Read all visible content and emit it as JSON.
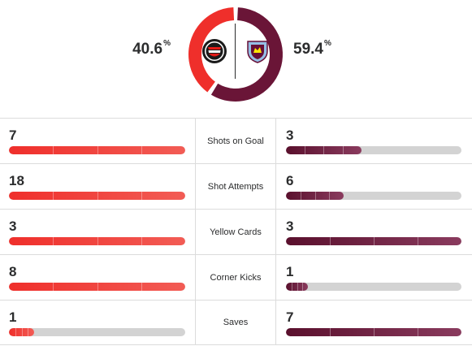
{
  "possession": {
    "home_value": "40.6",
    "away_value": "59.4",
    "percent_sign": "%",
    "home_fraction": 0.406,
    "away_fraction": 0.594,
    "home_color": "#ef2f2b",
    "away_color": "#6a1537"
  },
  "teams": {
    "home_crest_icon": "feyenoord-crest-icon",
    "away_crest_icon": "aston-villa-crest-icon"
  },
  "stats": [
    {
      "label": "Shots on Goal",
      "home": "7",
      "away": "3",
      "home_fill": 1.0,
      "away_fill": 0.43
    },
    {
      "label": "Shot Attempts",
      "home": "18",
      "away": "6",
      "home_fill": 1.0,
      "away_fill": 0.33
    },
    {
      "label": "Yellow Cards",
      "home": "3",
      "away": "3",
      "home_fill": 1.0,
      "away_fill": 1.0
    },
    {
      "label": "Corner Kicks",
      "home": "8",
      "away": "1",
      "home_fill": 1.0,
      "away_fill": 0.125
    },
    {
      "label": "Saves",
      "home": "1",
      "away": "7",
      "home_fill": 0.143,
      "away_fill": 1.0
    }
  ]
}
